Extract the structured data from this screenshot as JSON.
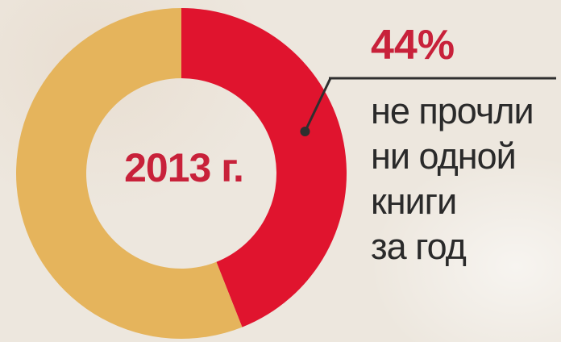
{
  "chart_data": {
    "type": "pie",
    "donut": true,
    "center_label": "2013 г.",
    "slices": [
      {
        "value": 44,
        "label": "44%",
        "color": "#e0142e"
      },
      {
        "value": 56,
        "label": "",
        "color": "#e5b45c"
      }
    ],
    "annotation": {
      "value_text": "44%",
      "lines": [
        "не прочли",
        "ни одной",
        "книги",
        "за год"
      ]
    }
  }
}
